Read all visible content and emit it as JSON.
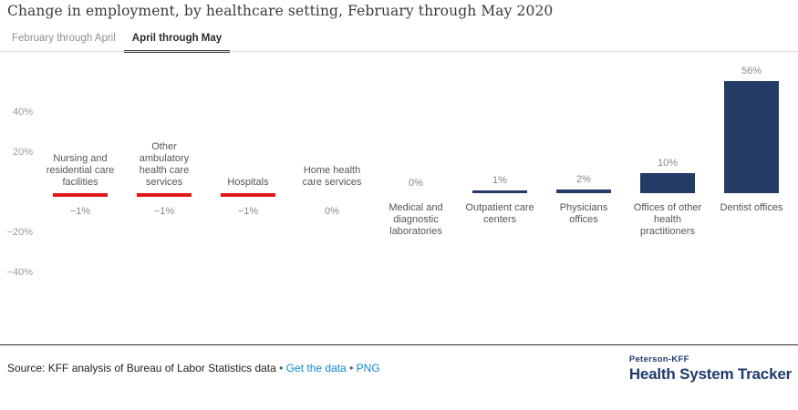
{
  "title": "Change in employment, by healthcare setting, February through May 2020",
  "tabs": [
    {
      "label": "February through April",
      "selected": false
    },
    {
      "label": "April through May",
      "selected": true
    }
  ],
  "chart_data": {
    "type": "bar",
    "title": "Change in employment, by healthcare setting, February through May 2020",
    "categories": [
      "Nursing and\nresidential care\nfacilities",
      "Other\nambulatory\nhealth care\nservices",
      "Hospitals",
      "Home health\ncare services",
      "Medical and\ndiagnostic\nlaboratories",
      "Outpatient care\ncenters",
      "Physicians\noffices",
      "Offices of other\nhealth\npractitioners",
      "Dentist offices"
    ],
    "values": [
      -1,
      -1,
      -1,
      0,
      0,
      1,
      2,
      10,
      56
    ],
    "value_labels": [
      "−1%",
      "−1%",
      "−1%",
      "0%",
      "0%",
      "1%",
      "2%",
      "10%",
      "56%"
    ],
    "value_label_position": [
      "below",
      "below",
      "below",
      "below",
      "above",
      "above",
      "above",
      "above",
      "above"
    ],
    "xlabel": "",
    "ylabel": "",
    "ylim": [
      -50,
      65
    ],
    "yticks": [
      40,
      20,
      -20,
      -40
    ],
    "grid": false,
    "legend": "none",
    "colors": {
      "positive": "#243a67",
      "negative": "#e01a1a"
    }
  },
  "footer": {
    "source_text": "Source: KFF analysis of Bureau of Labor Statistics data",
    "separator": "•",
    "links": [
      {
        "label": "Get the data"
      },
      {
        "label": "PNG"
      }
    ],
    "link_color": "#0e8bd1"
  },
  "logo": {
    "top": "Peterson-KFF",
    "bottom": "Health System Tracker"
  }
}
